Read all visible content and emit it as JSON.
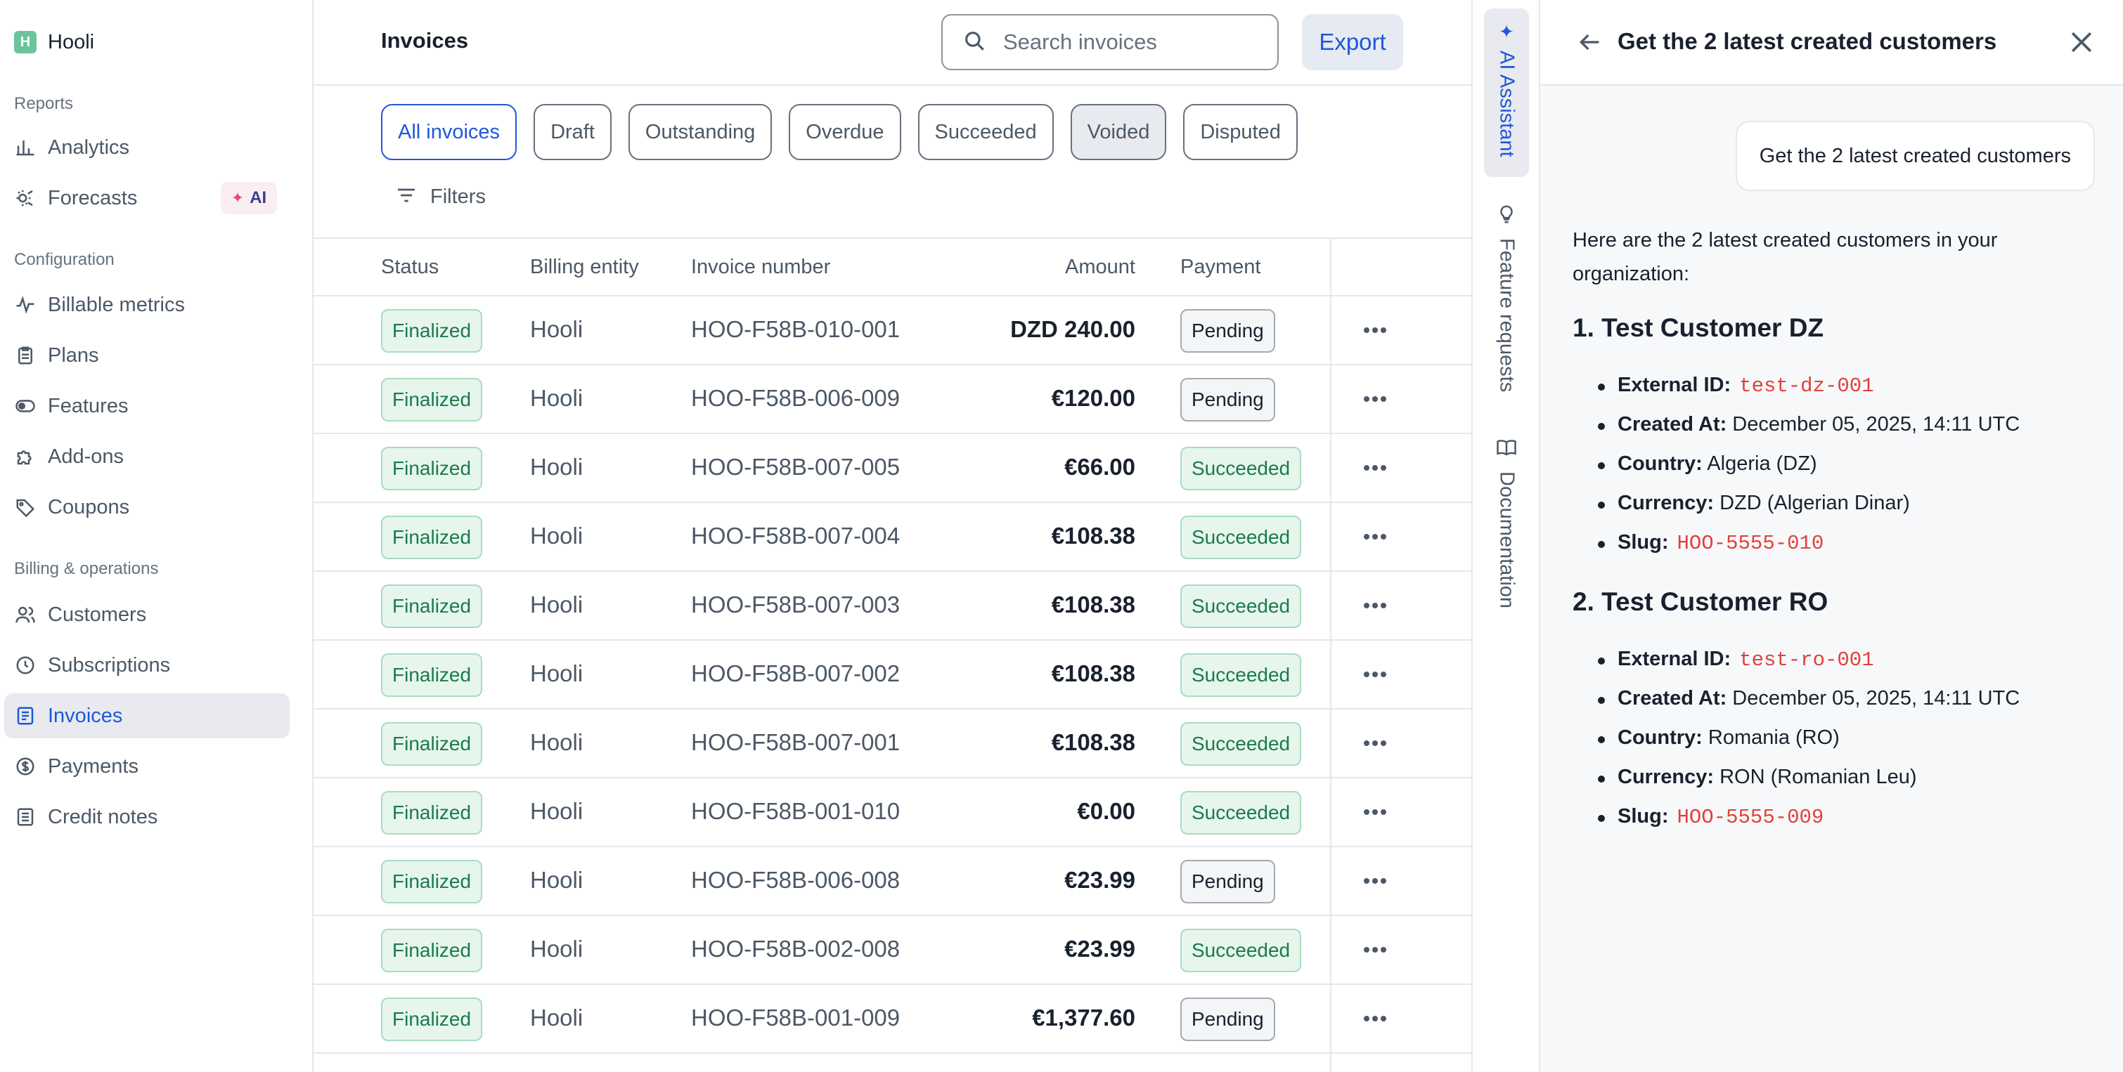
{
  "sidebar": {
    "org_initial": "H",
    "org_name": "Hooli",
    "sections": {
      "reports": "Reports",
      "configuration": "Configuration",
      "billing": "Billing & operations"
    },
    "items": [
      {
        "label": "Analytics",
        "icon": "bar-chart-icon"
      },
      {
        "label": "Forecasts",
        "icon": "forecast-icon",
        "badge": "AI"
      },
      {
        "label": "Billable metrics",
        "icon": "pulse-icon"
      },
      {
        "label": "Plans",
        "icon": "clipboard-icon"
      },
      {
        "label": "Features",
        "icon": "toggle-icon"
      },
      {
        "label": "Add-ons",
        "icon": "puzzle-icon"
      },
      {
        "label": "Coupons",
        "icon": "tag-icon"
      },
      {
        "label": "Customers",
        "icon": "users-icon"
      },
      {
        "label": "Subscriptions",
        "icon": "clock-icon"
      },
      {
        "label": "Invoices",
        "icon": "invoice-icon",
        "active": true
      },
      {
        "label": "Payments",
        "icon": "dollar-circle-icon"
      },
      {
        "label": "Credit notes",
        "icon": "receipt-icon"
      }
    ]
  },
  "header": {
    "title": "Invoices",
    "search_placeholder": "Search invoices",
    "export_label": "Export"
  },
  "filters": {
    "chips": [
      "All invoices",
      "Draft",
      "Outstanding",
      "Overdue",
      "Succeeded",
      "Voided",
      "Disputed"
    ],
    "selected": "All invoices",
    "filters_label": "Filters"
  },
  "table": {
    "headers": {
      "status": "Status",
      "entity": "Billing entity",
      "number": "Invoice number",
      "amount": "Amount",
      "payment": "Payment"
    },
    "rows": [
      {
        "status": "Finalized",
        "entity": "Hooli",
        "number": "HOO-F58B-010-001",
        "amount": "DZD 240.00",
        "payment": "Pending"
      },
      {
        "status": "Finalized",
        "entity": "Hooli",
        "number": "HOO-F58B-006-009",
        "amount": "€120.00",
        "payment": "Pending"
      },
      {
        "status": "Finalized",
        "entity": "Hooli",
        "number": "HOO-F58B-007-005",
        "amount": "€66.00",
        "payment": "Succeeded"
      },
      {
        "status": "Finalized",
        "entity": "Hooli",
        "number": "HOO-F58B-007-004",
        "amount": "€108.38",
        "payment": "Succeeded"
      },
      {
        "status": "Finalized",
        "entity": "Hooli",
        "number": "HOO-F58B-007-003",
        "amount": "€108.38",
        "payment": "Succeeded"
      },
      {
        "status": "Finalized",
        "entity": "Hooli",
        "number": "HOO-F58B-007-002",
        "amount": "€108.38",
        "payment": "Succeeded"
      },
      {
        "status": "Finalized",
        "entity": "Hooli",
        "number": "HOO-F58B-007-001",
        "amount": "€108.38",
        "payment": "Succeeded"
      },
      {
        "status": "Finalized",
        "entity": "Hooli",
        "number": "HOO-F58B-001-010",
        "amount": "€0.00",
        "payment": "Succeeded"
      },
      {
        "status": "Finalized",
        "entity": "Hooli",
        "number": "HOO-F58B-006-008",
        "amount": "€23.99",
        "payment": "Pending"
      },
      {
        "status": "Finalized",
        "entity": "Hooli",
        "number": "HOO-F58B-002-008",
        "amount": "€23.99",
        "payment": "Succeeded"
      },
      {
        "status": "Finalized",
        "entity": "Hooli",
        "number": "HOO-F58B-001-009",
        "amount": "€1,377.60",
        "payment": "Pending"
      }
    ]
  },
  "rail": {
    "tabs": [
      "AI Assistant",
      "Feature requests",
      "Documentation"
    ]
  },
  "assistant": {
    "title": "Get the 2 latest created customers",
    "user_message": "Get the 2 latest created customers",
    "intro": "Here are the 2 latest created customers in your organization:",
    "customers": [
      {
        "heading": "1. Test Customer DZ",
        "external_id_label": "External ID:",
        "external_id": "test-dz-001",
        "created_label": "Created At:",
        "created": "December 05, 2025, 14:11 UTC",
        "country_label": "Country:",
        "country": "Algeria (DZ)",
        "currency_label": "Currency:",
        "currency": "DZD (Algerian Dinar)",
        "slug_label": "Slug:",
        "slug": "HOO-5555-010"
      },
      {
        "heading": "2. Test Customer RO",
        "external_id_label": "External ID:",
        "external_id": "test-ro-001",
        "created_label": "Created At:",
        "created": "December 05, 2025, 14:11 UTC",
        "country_label": "Country:",
        "country": "Romania (RO)",
        "currency_label": "Currency:",
        "currency": "RON (Romanian Leu)",
        "slug_label": "Slug:",
        "slug": "HOO-5555-009"
      }
    ]
  },
  "colors": {
    "accent": "#2058d6",
    "success_bg": "#e6f6ed",
    "success_text": "#1c7a4a",
    "code_red": "#e0413a"
  }
}
